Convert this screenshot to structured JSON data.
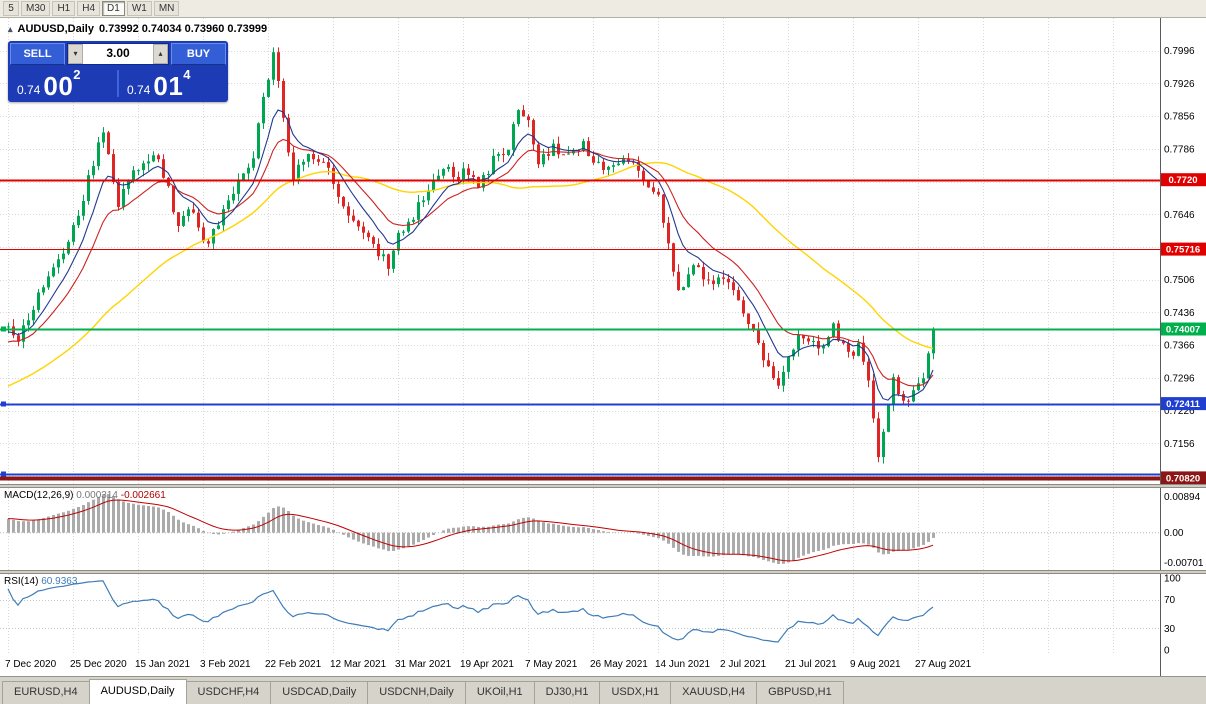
{
  "toolbar": {
    "timeframes": [
      {
        "label": "5"
      },
      {
        "label": "M30"
      },
      {
        "label": "H1"
      },
      {
        "label": "H4"
      },
      {
        "label": "D1",
        "active": true
      },
      {
        "label": "W1"
      },
      {
        "label": "MN"
      }
    ]
  },
  "chart_header": {
    "symbol": "AUDUSD,Daily",
    "ohlc": "0.73992 0.74034 0.73960 0.73999",
    "one_click_icon": "▴"
  },
  "trade_panel": {
    "sell_label": "SELL",
    "buy_label": "BUY",
    "volume": "3.00",
    "volume_down_icon": "▾",
    "volume_up_icon": "▴",
    "sell_price": {
      "base": "0.74",
      "pips": "00",
      "pipette": "2"
    },
    "buy_price": {
      "base": "0.74",
      "pips": "01",
      "pipette": "4"
    }
  },
  "indicators": {
    "macd": {
      "title": "MACD(12,26,9)",
      "value_main": "0.000314",
      "value_signal": "-0.002661",
      "axis": [
        "0.00894",
        "0.00",
        "-0.00701"
      ]
    },
    "rsi": {
      "title": "RSI(14)",
      "value": "60.9363",
      "axis": [
        "100",
        "70",
        "30",
        "0"
      ],
      "levels": [
        70,
        30
      ]
    }
  },
  "chart_data": {
    "type": "candlestick",
    "symbol": "AUDUSD",
    "timeframe": "Daily",
    "n": 186,
    "last_close": 0.73999,
    "colors": {
      "up": "#00a651",
      "down": "#e02525",
      "grid": "#d9d9d9",
      "macd_bar": "#ababab",
      "macd_signal": "#c00000",
      "rsi_line": "#3e7cb8"
    },
    "price_scale": {
      "top": 0.8066,
      "bottom": 0.7069,
      "grid_step": 0.007,
      "grid_prices": [
        0.7996,
        0.7926,
        0.7856,
        0.7786,
        0.7716,
        0.7646,
        0.7576,
        0.7506,
        0.7436,
        0.7366,
        0.7296,
        0.7226,
        0.7156,
        0.7086
      ],
      "labels": [
        0.7996,
        0.7926,
        0.7856,
        0.7786,
        0.7646,
        0.7506,
        0.7436,
        0.7366,
        0.7296,
        0.7226,
        0.7156
      ]
    },
    "levels": [
      {
        "price": 0.772,
        "label": "0.7720",
        "color": "#e00000",
        "width": 2
      },
      {
        "price": 0.75716,
        "label": "0.75716",
        "color": "#e00000",
        "width": 1
      },
      {
        "price": 0.74007,
        "label": "0.74007",
        "color": "#00b04c",
        "width": 2,
        "handles": true
      },
      {
        "price": 0.72411,
        "label": "0.72411",
        "color": "#1f3fd0",
        "width": 2,
        "handles": true
      },
      {
        "price": 0.709,
        "label": "",
        "color": "#1f3fd0",
        "width": 2,
        "handles": true
      },
      {
        "price": 0.7082,
        "label": "0.70820",
        "color": "#8c1616",
        "width": 4
      }
    ],
    "ma": [
      {
        "name": "sma-slow",
        "type": "sma",
        "period": 48,
        "color": "#ffd400",
        "width": 1.4
      },
      {
        "name": "ema-mid",
        "type": "ema",
        "period": 16,
        "color": "#cc2222",
        "width": 1.1
      },
      {
        "name": "ema-fast",
        "type": "ema",
        "period": 8,
        "color": "#22398f",
        "width": 1.1
      }
    ],
    "waypoints": [
      [
        0,
        0.7415
      ],
      [
        2,
        0.7372
      ],
      [
        6,
        0.748
      ],
      [
        9,
        0.754
      ],
      [
        12,
        0.759
      ],
      [
        14,
        0.7645
      ],
      [
        17,
        0.7755
      ],
      [
        19,
        0.783
      ],
      [
        22,
        0.7672
      ],
      [
        26,
        0.775
      ],
      [
        30,
        0.7772
      ],
      [
        34,
        0.7625
      ],
      [
        37,
        0.766
      ],
      [
        39,
        0.7578
      ],
      [
        42,
        0.7625
      ],
      [
        46,
        0.772
      ],
      [
        49,
        0.7772
      ],
      [
        52,
        0.7945
      ],
      [
        53,
        0.8002
      ],
      [
        55,
        0.7845
      ],
      [
        57,
        0.7722
      ],
      [
        60,
        0.7782
      ],
      [
        63,
        0.7758
      ],
      [
        65,
        0.7712
      ],
      [
        68,
        0.7652
      ],
      [
        71,
        0.7608
      ],
      [
        74,
        0.7562
      ],
      [
        76,
        0.754
      ],
      [
        78,
        0.7596
      ],
      [
        81,
        0.7642
      ],
      [
        84,
        0.7702
      ],
      [
        87,
        0.7752
      ],
      [
        89,
        0.7722
      ],
      [
        91,
        0.7738
      ],
      [
        94,
        0.7702
      ],
      [
        97,
        0.7762
      ],
      [
        100,
        0.7782
      ],
      [
        102,
        0.7878
      ],
      [
        104,
        0.7838
      ],
      [
        106,
        0.7752
      ],
      [
        109,
        0.7792
      ],
      [
        112,
        0.7772
      ],
      [
        115,
        0.78
      ],
      [
        117,
        0.7762
      ],
      [
        120,
        0.7742
      ],
      [
        123,
        0.7762
      ],
      [
        126,
        0.7742
      ],
      [
        128,
        0.7702
      ],
      [
        130,
        0.7692
      ],
      [
        132,
        0.7582
      ],
      [
        134,
        0.7482
      ],
      [
        137,
        0.7542
      ],
      [
        140,
        0.7502
      ],
      [
        143,
        0.7512
      ],
      [
        146,
        0.7452
      ],
      [
        149,
        0.7402
      ],
      [
        152,
        0.7312
      ],
      [
        154,
        0.7282
      ],
      [
        156,
        0.7352
      ],
      [
        159,
        0.7392
      ],
      [
        162,
        0.7362
      ],
      [
        165,
        0.7402
      ],
      [
        167,
        0.7372
      ],
      [
        169,
        0.7342
      ],
      [
        170,
        0.7372
      ],
      [
        172,
        0.7282
      ],
      [
        174,
        0.7115
      ],
      [
        176,
        0.7232
      ],
      [
        177,
        0.7292
      ],
      [
        179,
        0.7242
      ],
      [
        181,
        0.7262
      ],
      [
        183,
        0.7302
      ],
      [
        185,
        0.74
      ]
    ],
    "dates": [
      "7 Dec 2020",
      "25 Dec 2020",
      "15 Jan 2021",
      "3 Feb 2021",
      "22 Feb 2021",
      "12 Mar 2021",
      "31 Mar 2021",
      "19 Apr 2021",
      "7 May 2021",
      "26 May 2021",
      "14 Jun 2021",
      "2 Jul 2021",
      "21 Jul 2021",
      "9 Aug 2021",
      "27 Aug 2021"
    ]
  },
  "tabs": [
    {
      "label": "EURUSD,H4"
    },
    {
      "label": "AUDUSD,Daily",
      "active": true
    },
    {
      "label": "USDCHF,H4"
    },
    {
      "label": "USDCAD,Daily"
    },
    {
      "label": "USDCNH,Daily"
    },
    {
      "label": "UKOil,H1"
    },
    {
      "label": "DJ30,H1"
    },
    {
      "label": "USDX,H1"
    },
    {
      "label": "XAUUSD,H4"
    },
    {
      "label": "GBPUSD,H1"
    }
  ]
}
